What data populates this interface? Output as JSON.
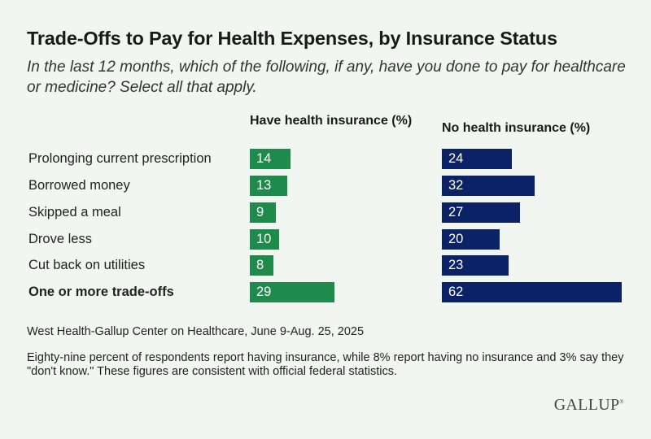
{
  "chart_data": {
    "type": "bar",
    "orientation": "horizontal",
    "title": "Trade-Offs to Pay for Health Expenses, by Insurance Status",
    "subtitle": "In the last 12 months, which of the following, if any, have you done to pay for healthcare or medicine? Select all that apply.",
    "categories": [
      "Prolonging current prescription",
      "Borrowed money",
      "Skipped a meal",
      "Drove less",
      "Cut back on utilities",
      "One or more trade-offs"
    ],
    "series": [
      {
        "name": "Have health insurance (%)",
        "values": [
          14,
          13,
          9,
          10,
          8,
          29
        ],
        "color": "#1e8a4c"
      },
      {
        "name": "No health insurance (%)",
        "values": [
          24,
          32,
          27,
          20,
          23,
          62
        ],
        "color": "#0c2266"
      }
    ],
    "grid": false,
    "data_labels": "inside-left"
  },
  "source": "West Health-Gallup Center on Healthcare, June 9-Aug. 25, 2025",
  "note": "Eighty-nine percent of respondents report having insurance, while 8% report having no insurance and 3% say they \"don't know.\" These figures are consistent with official federal statistics.",
  "logo": "GALLUP"
}
